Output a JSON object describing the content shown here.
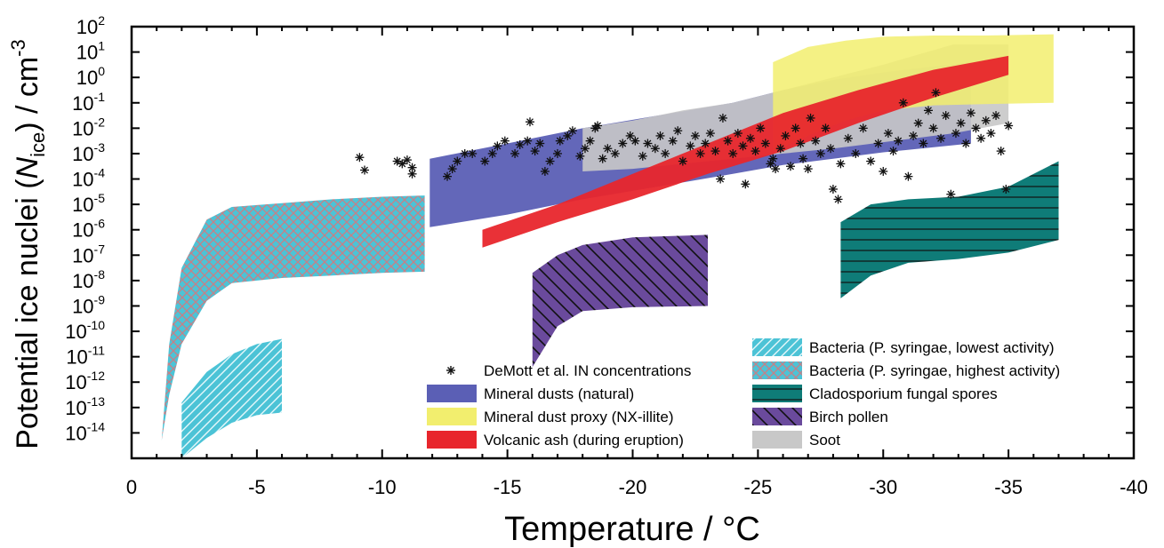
{
  "chart_data": {
    "type": "area",
    "title": "",
    "xlabel": "Temperature / °C",
    "ylabel": {
      "prefix": "Potential ice nuclei (",
      "symbol": "N",
      "subscript": "ice",
      "suffix": ") / cm",
      "superscript": "-3"
    },
    "xlim": [
      0,
      -40
    ],
    "ylim_log10": [
      -15,
      2
    ],
    "yscale": "log",
    "x_ticks": [
      "0",
      "-5",
      "-10",
      "-15",
      "-20",
      "-25",
      "-30",
      "-35",
      "-40"
    ],
    "y_ticks": [
      {
        "base": "10",
        "exp": "2"
      },
      {
        "base": "10",
        "exp": "1"
      },
      {
        "base": "10",
        "exp": "0"
      },
      {
        "base": "10",
        "exp": "-1"
      },
      {
        "base": "10",
        "exp": "-2"
      },
      {
        "base": "10",
        "exp": "-3"
      },
      {
        "base": "10",
        "exp": "-4"
      },
      {
        "base": "10",
        "exp": "-5"
      },
      {
        "base": "10",
        "exp": "-6"
      },
      {
        "base": "10",
        "exp": "-7"
      },
      {
        "base": "10",
        "exp": "-8"
      },
      {
        "base": "10",
        "exp": "-9"
      },
      {
        "base": "10",
        "exp": "-10"
      },
      {
        "base": "10",
        "exp": "-11"
      },
      {
        "base": "10",
        "exp": "-12"
      },
      {
        "base": "10",
        "exp": "-13"
      },
      {
        "base": "10",
        "exp": "-14"
      }
    ],
    "series": [
      {
        "name": "Mineral dusts (natural)",
        "color": "#5b5fb5",
        "pattern": "solid",
        "x": [
          -11.9,
          -15,
          -18,
          -21,
          -24,
          -26,
          -28,
          -30,
          -33.5
        ],
        "lower_log10": [
          -5.9,
          -5.4,
          -4.8,
          -4.3,
          -3.8,
          -3.45,
          -3.2,
          -2.95,
          -2.6
        ],
        "upper_log10": [
          -3.2,
          -2.6,
          -2.0,
          -1.5,
          -1.0,
          -0.5,
          -0.1,
          0.2,
          0.6
        ]
      },
      {
        "name": "Soot",
        "color": "#c8c8c8",
        "pattern": "solid",
        "x": [
          -18,
          -20,
          -22,
          -24,
          -26,
          -28,
          -30,
          -32.8,
          -35
        ],
        "lower_log10": [
          -3.7,
          -3.6,
          -3.4,
          -3.2,
          -3.0,
          -2.8,
          -2.55,
          -2.2,
          -1.8
        ],
        "upper_log10": [
          -2.0,
          -1.7,
          -1.3,
          -1.0,
          -0.5,
          0.0,
          0.5,
          1.3,
          1.3
        ]
      },
      {
        "name": "Mineral dust proxy (NX-illite)",
        "color": "#f2ee6e",
        "pattern": "solid",
        "x": [
          -25.6,
          -27,
          -28.5,
          -30,
          -32,
          -34,
          -36.8
        ],
        "lower_log10": [
          -2.9,
          -2.3,
          -1.7,
          -1.3,
          -1.1,
          -1.05,
          -1.0
        ],
        "upper_log10": [
          0.6,
          1.2,
          1.45,
          1.6,
          1.65,
          1.65,
          1.7
        ]
      },
      {
        "name": "Volcanic ash (during eruption)",
        "color": "#e8262c",
        "pattern": "solid",
        "x": [
          -14,
          -17,
          -20,
          -23,
          -26,
          -29,
          -32,
          -35
        ],
        "lower_log10": [
          -6.7,
          -5.7,
          -4.8,
          -3.8,
          -2.9,
          -1.8,
          -0.8,
          0.1
        ],
        "upper_log10": [
          -6.0,
          -5.0,
          -3.8,
          -2.6,
          -1.4,
          -0.5,
          0.3,
          0.85
        ]
      },
      {
        "name": "Bacteria (P. syringae, highest activity)",
        "color": "#4cc3d6",
        "pattern": "crosshatch",
        "x": [
          -1.2,
          -1.5,
          -2,
          -3,
          -4,
          -6,
          -8,
          -10,
          -11.7
        ],
        "lower_log10": [
          -14.3,
          -12.5,
          -10.5,
          -8.8,
          -8.1,
          -7.9,
          -7.8,
          -7.7,
          -7.65
        ],
        "upper_log10": [
          -14.3,
          -10.5,
          -7.5,
          -5.6,
          -5.1,
          -4.95,
          -4.8,
          -4.7,
          -4.65
        ]
      },
      {
        "name": "Bacteria (P. syringae, lowest activity)",
        "color": "#4cc3d6",
        "pattern": "diagonal",
        "x": [
          -2,
          -3,
          -4,
          -5,
          -6
        ],
        "lower_log10": [
          -15,
          -14.2,
          -13.6,
          -13.3,
          -13.2
        ],
        "upper_log10": [
          -12.8,
          -11.6,
          -10.9,
          -10.5,
          -10.3
        ]
      },
      {
        "name": "Birch pollen",
        "color": "#6a4a9c",
        "pattern": "diagonal-back",
        "x": [
          -16,
          -17,
          -18,
          -20,
          -23
        ],
        "lower_log10": [
          -11.4,
          -9.8,
          -9.2,
          -9.05,
          -9.0
        ],
        "upper_log10": [
          -7.7,
          -7.0,
          -6.6,
          -6.3,
          -6.2
        ]
      },
      {
        "name": "Cladosporium fungal spores",
        "color": "#0f7c78",
        "pattern": "horizontal",
        "x": [
          -28.3,
          -29.5,
          -31,
          -33,
          -35,
          -37
        ],
        "lower_log10": [
          -8.7,
          -7.8,
          -7.3,
          -7.15,
          -6.9,
          -6.4
        ],
        "upper_log10": [
          -5.7,
          -5.0,
          -4.8,
          -4.7,
          -4.3,
          -3.3
        ]
      }
    ],
    "scatter": {
      "name": "DeMott et al. IN concentrations",
      "points": [
        [
          -9.1,
          -3.15
        ],
        [
          -9.3,
          -3.65
        ],
        [
          -10.8,
          -3.4
        ],
        [
          -11.0,
          -3.25
        ],
        [
          -11.2,
          -3.55
        ],
        [
          -11.2,
          -3.8
        ],
        [
          -10.6,
          -3.3
        ],
        [
          -12.6,
          -3.9
        ],
        [
          -12.8,
          -3.6
        ],
        [
          -13.0,
          -3.3
        ],
        [
          -13.3,
          -3.0
        ],
        [
          -13.6,
          -3.0
        ],
        [
          -14.1,
          -3.3
        ],
        [
          -14.4,
          -3.0
        ],
        [
          -14.6,
          -2.7
        ],
        [
          -14.9,
          -2.5
        ],
        [
          -15.3,
          -3.0
        ],
        [
          -15.5,
          -2.65
        ],
        [
          -15.8,
          -2.5
        ],
        [
          -15.9,
          -1.75
        ],
        [
          -16.1,
          -2.9
        ],
        [
          -16.3,
          -2.6
        ],
        [
          -16.5,
          -3.7
        ],
        [
          -16.7,
          -3.3
        ],
        [
          -17.0,
          -3.0
        ],
        [
          -17.1,
          -2.5
        ],
        [
          -17.4,
          -2.3
        ],
        [
          -17.6,
          -2.1
        ],
        [
          -17.9,
          -3.1
        ],
        [
          -18.1,
          -2.8
        ],
        [
          -18.3,
          -2.5
        ],
        [
          -18.5,
          -2.0
        ],
        [
          -18.6,
          -1.9
        ],
        [
          -18.8,
          -3.2
        ],
        [
          -19.0,
          -2.8
        ],
        [
          -19.3,
          -3.0
        ],
        [
          -19.6,
          -2.6
        ],
        [
          -19.9,
          -2.3
        ],
        [
          -20.1,
          -2.5
        ],
        [
          -20.4,
          -3.1
        ],
        [
          -20.6,
          -2.6
        ],
        [
          -20.9,
          -2.8
        ],
        [
          -21.1,
          -2.3
        ],
        [
          -21.3,
          -3.0
        ],
        [
          -21.6,
          -2.5
        ],
        [
          -21.8,
          -2.1
        ],
        [
          -22.0,
          -3.3
        ],
        [
          -22.3,
          -2.7
        ],
        [
          -22.5,
          -2.3
        ],
        [
          -22.7,
          -3.0
        ],
        [
          -22.9,
          -2.6
        ],
        [
          -23.1,
          -2.2
        ],
        [
          -23.3,
          -2.9
        ],
        [
          -23.5,
          -4.0
        ],
        [
          -23.6,
          -1.6
        ],
        [
          -23.8,
          -2.5
        ],
        [
          -24.0,
          -3.0
        ],
        [
          -24.2,
          -2.2
        ],
        [
          -24.4,
          -2.7
        ],
        [
          -24.5,
          -4.2
        ],
        [
          -24.7,
          -2.4
        ],
        [
          -24.9,
          -2.9
        ],
        [
          -25.1,
          -2.0
        ],
        [
          -25.3,
          -2.6
        ],
        [
          -25.5,
          -3.4
        ],
        [
          -25.6,
          -3.2
        ],
        [
          -25.7,
          -3.6
        ],
        [
          -25.9,
          -2.8
        ],
        [
          -26.1,
          -2.3
        ],
        [
          -26.3,
          -3.5
        ],
        [
          -26.5,
          -2.0
        ],
        [
          -26.7,
          -2.6
        ],
        [
          -26.8,
          -3.2
        ],
        [
          -27.0,
          -3.6
        ],
        [
          -27.1,
          -1.6
        ],
        [
          -27.3,
          -2.5
        ],
        [
          -27.5,
          -3.0
        ],
        [
          -27.7,
          -2.0
        ],
        [
          -27.9,
          -2.8
        ],
        [
          -28.0,
          -4.4
        ],
        [
          -28.2,
          -4.8
        ],
        [
          -28.3,
          -3.4
        ],
        [
          -28.6,
          -2.4
        ],
        [
          -28.9,
          -3.0
        ],
        [
          -29.2,
          -2.0
        ],
        [
          -29.5,
          -3.3
        ],
        [
          -29.8,
          -2.6
        ],
        [
          -30.0,
          -3.7
        ],
        [
          -30.2,
          -2.2
        ],
        [
          -30.4,
          -2.9
        ],
        [
          -30.6,
          -2.5
        ],
        [
          -30.8,
          -1.0
        ],
        [
          -31.0,
          -3.9
        ],
        [
          -31.2,
          -2.3
        ],
        [
          -31.4,
          -1.8
        ],
        [
          -31.6,
          -2.6
        ],
        [
          -31.8,
          -1.3
        ],
        [
          -32.0,
          -2.0
        ],
        [
          -32.1,
          -0.6
        ],
        [
          -32.3,
          -2.4
        ],
        [
          -32.5,
          -1.5
        ],
        [
          -32.7,
          -4.6
        ],
        [
          -32.9,
          -2.2
        ],
        [
          -33.1,
          -1.8
        ],
        [
          -33.3,
          -2.6
        ],
        [
          -33.5,
          -1.4
        ],
        [
          -33.7,
          -2.0
        ],
        [
          -33.9,
          -2.4
        ],
        [
          -34.1,
          -1.7
        ],
        [
          -34.3,
          -2.2
        ],
        [
          -34.5,
          -1.5
        ],
        [
          -34.7,
          -2.9
        ],
        [
          -34.9,
          -4.4
        ],
        [
          -35.0,
          -1.9
        ]
      ]
    },
    "legend": {
      "placement": "bottom-center",
      "left_column": [
        {
          "label": "DeMott et al. IN concentrations",
          "marker": "asterisk"
        },
        {
          "label": "Mineral dusts (natural)",
          "swatch": "#5b5fb5",
          "pattern": "solid"
        },
        {
          "label": "Mineral dust proxy (NX-illite)",
          "swatch": "#f2ee6e",
          "pattern": "solid"
        },
        {
          "label": "Volcanic ash (during eruption)",
          "swatch": "#e8262c",
          "pattern": "solid"
        }
      ],
      "right_column": [
        {
          "label": "Bacteria (P. syringae, lowest activity)",
          "swatch": "#4cc3d6",
          "pattern": "diagonal"
        },
        {
          "label": "Bacteria (P. syringae, highest activity)",
          "swatch": "#4cc3d6",
          "pattern": "crosshatch"
        },
        {
          "label": "Cladosporium fungal spores",
          "swatch": "#0f7c78",
          "pattern": "horizontal"
        },
        {
          "label": "Birch pollen",
          "swatch": "#6a4a9c",
          "pattern": "diagonal-back"
        },
        {
          "label": "Soot",
          "swatch": "#c8c8c8",
          "pattern": "solid"
        }
      ]
    },
    "grid": false
  }
}
